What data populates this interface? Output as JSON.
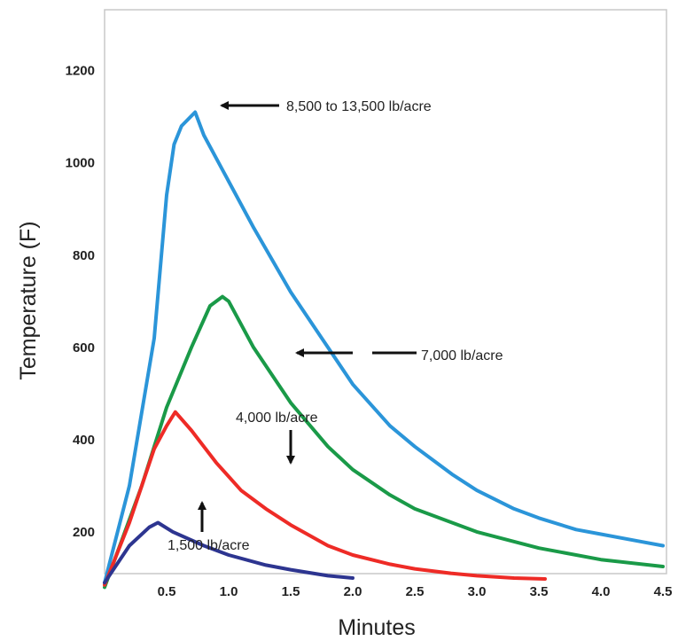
{
  "chart_data": {
    "type": "line",
    "title": "",
    "xlabel": "Minutes",
    "ylabel": "Temperature (F)",
    "xlim": [
      0,
      4.5
    ],
    "ylim": [
      0,
      1200
    ],
    "x_ticks": [
      "0.5",
      "1.0",
      "1.5",
      "2.0",
      "2.5",
      "3.0",
      "3.5",
      "4.0",
      "4.5"
    ],
    "y_ticks": [
      "200",
      "400",
      "600",
      "800",
      "1000",
      "1200"
    ],
    "grid": false,
    "series": [
      {
        "name": "8,500 to 13,500 lb/acre",
        "color": "#2b95d9",
        "x": [
          0,
          0.2,
          0.4,
          0.5,
          0.56,
          0.62,
          0.73,
          0.8,
          1.0,
          1.2,
          1.5,
          1.8,
          2.0,
          2.3,
          2.5,
          2.8,
          3.0,
          3.3,
          3.5,
          3.8,
          4.0,
          4.3,
          4.5
        ],
        "values": [
          90,
          300,
          620,
          930,
          1040,
          1080,
          1110,
          1060,
          960,
          860,
          720,
          600,
          520,
          430,
          385,
          325,
          290,
          250,
          230,
          205,
          195,
          180,
          170
        ]
      },
      {
        "name": "7,000 lb/acre",
        "color": "#1a9a48",
        "x": [
          0,
          0.3,
          0.5,
          0.7,
          0.85,
          0.95,
          1.0,
          1.2,
          1.5,
          1.8,
          2.0,
          2.3,
          2.5,
          3.0,
          3.5,
          4.0,
          4.5
        ],
        "values": [
          80,
          300,
          470,
          600,
          690,
          710,
          700,
          600,
          480,
          385,
          335,
          280,
          250,
          200,
          165,
          140,
          125
        ]
      },
      {
        "name": "4,000 lb/acre",
        "color": "#ee2b26",
        "x": [
          0,
          0.2,
          0.4,
          0.5,
          0.57,
          0.7,
          0.9,
          1.1,
          1.3,
          1.5,
          1.8,
          2.0,
          2.3,
          2.5,
          2.8,
          3.0,
          3.3,
          3.55
        ],
        "values": [
          85,
          220,
          380,
          430,
          460,
          420,
          350,
          290,
          250,
          215,
          170,
          150,
          130,
          120,
          110,
          105,
          100,
          98
        ]
      },
      {
        "name": "1,500 lb/acre",
        "color": "#2d3590",
        "x": [
          0,
          0.2,
          0.36,
          0.43,
          0.55,
          0.8,
          1.0,
          1.3,
          1.5,
          1.8,
          2.0
        ],
        "values": [
          90,
          170,
          210,
          220,
          200,
          170,
          150,
          128,
          118,
          105,
          100
        ]
      }
    ],
    "annotations": [
      "8,500 to 13,500 lb/acre",
      "7,000 lb/acre",
      "4,000 lb/acre",
      "1,500 lb/acre"
    ]
  }
}
